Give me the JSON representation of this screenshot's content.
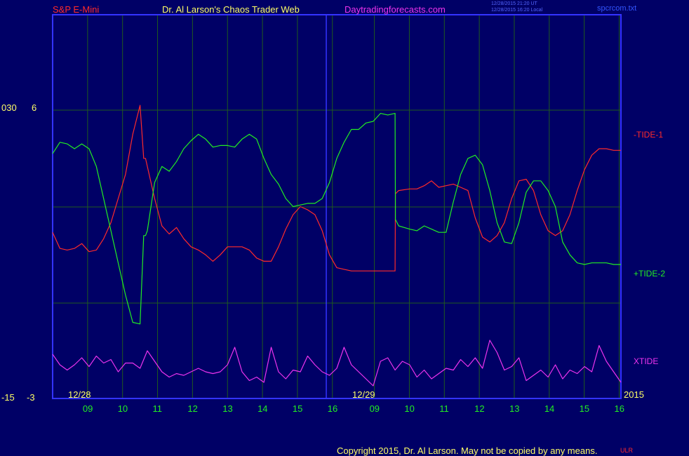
{
  "header": {
    "symbol": "S&P E-Mini",
    "site_title": "Dr. Al Larson's Chaos Trader Web",
    "site_url": "Daytradingforecasts.com",
    "timestamp_ut": "12/28/2015 21:20 UT",
    "timestamp_local": "12/28/2015 16:20 Local",
    "filename": "spcrcom.txt"
  },
  "footer": {
    "copyright": "Copyright 2015, Dr. Al Larson. May not be copied by any means.",
    "mark": "ULR"
  },
  "colors": {
    "background": "#000066",
    "frame": "#3333ff",
    "grid": "#1f5a1f",
    "tide1": "#ff2a2a",
    "tide2": "#22ee22",
    "xtide": "#ee33ee",
    "hour_labels": "#22ee22",
    "scale_labels": "#ffff66"
  },
  "chart_data": {
    "type": "line",
    "left_scale_labels": [
      "030",
      "6",
      "-15",
      "-3"
    ],
    "date_labels": [
      "12/28",
      "12/29"
    ],
    "year_label": "2015",
    "x_tick_labels": [
      "09",
      "10",
      "11",
      "12",
      "13",
      "14",
      "15",
      "16",
      "09",
      "10",
      "11",
      "12",
      "13",
      "14",
      "15",
      "16"
    ],
    "x_domain": [
      0,
      15.6
    ],
    "y_domain_tides": [
      -6,
      6
    ],
    "y_domain_xtide": [
      -10,
      10
    ],
    "session_break_x": 7.2,
    "series": [
      {
        "name": "-TIDE-1",
        "x": [
          0,
          0.2,
          0.4,
          0.6,
          0.8,
          1.0,
          1.2,
          1.4,
          1.6,
          1.8,
          2.0,
          2.2,
          2.4,
          2.5,
          2.55,
          2.6,
          2.8,
          3.0,
          3.2,
          3.4,
          3.6,
          3.8,
          4.0,
          4.2,
          4.4,
          4.6,
          4.8,
          5.0,
          5.2,
          5.4,
          5.6,
          5.8,
          6.0,
          6.2,
          6.4,
          6.6,
          6.8,
          7.0,
          7.2,
          7.4,
          7.6,
          7.8,
          8.0,
          8.2,
          8.4,
          8.6,
          8.8,
          9.0,
          9.2,
          9.4,
          9.41,
          9.5,
          9.8,
          10.0,
          10.2,
          10.4,
          10.6,
          10.8,
          11.0,
          11.2,
          11.4,
          11.6,
          11.8,
          12.0,
          12.2,
          12.4,
          12.6,
          12.8,
          13.0,
          13.2,
          13.4,
          13.6,
          13.8,
          14.0,
          14.2,
          14.4,
          14.6,
          14.8,
          15.0,
          15.2,
          15.4,
          15.6
        ],
        "values": [
          -1.6,
          -2.6,
          -2.7,
          -2.6,
          -2.3,
          -2.8,
          -2.7,
          -2.0,
          -1.0,
          0.5,
          2.0,
          4.5,
          6.3,
          3.0,
          3.0,
          2.5,
          0.5,
          -1.2,
          -1.7,
          -1.3,
          -2.0,
          -2.5,
          -2.7,
          -3.0,
          -3.4,
          -3.0,
          -2.5,
          -2.5,
          -2.5,
          -2.7,
          -3.2,
          -3.4,
          -3.4,
          -2.5,
          -1.4,
          -0.5,
          0.0,
          -0.2,
          -0.5,
          -1.5,
          -3.0,
          -3.8,
          -3.9,
          -4.0,
          -4.0,
          -4.0,
          -4.0,
          -4.0,
          -4.0,
          -4.0,
          0.8,
          1.0,
          1.1,
          1.1,
          1.3,
          1.6,
          1.2,
          1.3,
          1.4,
          1.2,
          1.0,
          -0.7,
          -1.9,
          -2.2,
          -1.8,
          -1.0,
          0.5,
          1.6,
          1.7,
          1.0,
          -0.5,
          -1.5,
          -1.8,
          -1.5,
          -0.5,
          1.0,
          2.3,
          3.2,
          3.6,
          3.6,
          3.5,
          3.5
        ]
      },
      {
        "name": "+TIDE-2",
        "x": [
          0,
          0.2,
          0.4,
          0.6,
          0.8,
          1.0,
          1.2,
          1.4,
          1.6,
          1.8,
          2.0,
          2.2,
          2.4,
          2.5,
          2.55,
          2.6,
          2.8,
          3.0,
          3.2,
          3.4,
          3.6,
          3.8,
          4.0,
          4.2,
          4.4,
          4.6,
          4.8,
          5.0,
          5.2,
          5.4,
          5.6,
          5.8,
          6.0,
          6.2,
          6.4,
          6.6,
          6.8,
          7.0,
          7.2,
          7.4,
          7.6,
          7.8,
          8.0,
          8.2,
          8.4,
          8.6,
          8.8,
          9.0,
          9.2,
          9.4,
          9.41,
          9.5,
          9.8,
          10.0,
          10.2,
          10.4,
          10.6,
          10.8,
          11.0,
          11.2,
          11.4,
          11.6,
          11.8,
          12.0,
          12.2,
          12.4,
          12.6,
          12.8,
          13.0,
          13.2,
          13.4,
          13.6,
          13.8,
          14.0,
          14.2,
          14.4,
          14.6,
          14.8,
          15.0,
          15.2,
          15.4,
          15.6
        ],
        "values": [
          3.3,
          4.0,
          3.9,
          3.6,
          3.9,
          3.6,
          2.5,
          0.5,
          -1.5,
          -3.5,
          -5.5,
          -7.2,
          -7.3,
          -1.8,
          -1.8,
          -1.5,
          1.5,
          2.5,
          2.2,
          2.8,
          3.6,
          4.1,
          4.5,
          4.2,
          3.7,
          3.8,
          3.8,
          3.7,
          4.2,
          4.5,
          4.2,
          3.0,
          2.0,
          1.4,
          0.5,
          0.0,
          0.1,
          0.2,
          0.2,
          0.5,
          1.5,
          3.0,
          4.0,
          4.8,
          4.8,
          5.2,
          5.3,
          5.8,
          5.7,
          5.8,
          -0.8,
          -1.2,
          -1.4,
          -1.5,
          -1.2,
          -1.4,
          -1.6,
          -1.6,
          0.3,
          2.0,
          3.0,
          3.2,
          2.6,
          1.0,
          -1.0,
          -2.2,
          -2.3,
          -1.0,
          0.9,
          1.6,
          1.6,
          1.0,
          0.0,
          -2.2,
          -3.0,
          -3.5,
          -3.6,
          -3.5,
          -3.5,
          -3.5,
          -3.6,
          -3.6
        ]
      },
      {
        "name": "XTIDE",
        "x": [
          0,
          0.2,
          0.4,
          0.6,
          0.8,
          1.0,
          1.2,
          1.4,
          1.6,
          1.8,
          2.0,
          2.2,
          2.4,
          2.6,
          2.8,
          3.0,
          3.2,
          3.4,
          3.6,
          3.8,
          4.0,
          4.2,
          4.4,
          4.6,
          4.8,
          5.0,
          5.2,
          5.4,
          5.6,
          5.8,
          6.0,
          6.2,
          6.4,
          6.6,
          6.8,
          7.0,
          7.2,
          7.4,
          7.6,
          7.8,
          8.0,
          8.2,
          8.4,
          8.6,
          8.8,
          9.0,
          9.2,
          9.4,
          9.6,
          9.8,
          10.0,
          10.2,
          10.4,
          10.6,
          10.8,
          11.0,
          11.2,
          11.4,
          11.6,
          11.8,
          12.0,
          12.2,
          12.4,
          12.6,
          12.8,
          13.0,
          13.2,
          13.4,
          13.6,
          13.8,
          14.0,
          14.2,
          14.4,
          14.6,
          14.8,
          15.0,
          15.2,
          15.4,
          15.6
        ],
        "values": [
          3.0,
          0.0,
          -1.5,
          0.0,
          2.0,
          -0.5,
          2.5,
          0.5,
          1.5,
          -2.0,
          0.5,
          0.5,
          -1.0,
          4.0,
          1.0,
          -2.0,
          -3.5,
          -2.5,
          -3.0,
          -2.0,
          -1.0,
          -2.0,
          -2.5,
          -2.0,
          0.0,
          5.0,
          -2.0,
          -4.5,
          -3.5,
          -5.0,
          5.0,
          -2.0,
          -4.0,
          -1.5,
          -2.0,
          2.5,
          0.0,
          -2.0,
          -3.0,
          -1.0,
          5.0,
          0.0,
          -2.0,
          -4.0,
          -6.0,
          1.0,
          2.0,
          -1.5,
          1.0,
          0.0,
          -3.5,
          -1.5,
          -4.0,
          -2.5,
          -1.0,
          -1.5,
          1.5,
          -0.5,
          2.0,
          -1.0,
          7.0,
          3.5,
          -1.5,
          -0.5,
          2.0,
          -4.5,
          -3.0,
          -1.5,
          -3.5,
          0.0,
          -4.0,
          -1.5,
          -2.5,
          -0.5,
          -2.0,
          5.5,
          1.0,
          -2.0,
          -5.0
        ]
      }
    ]
  }
}
